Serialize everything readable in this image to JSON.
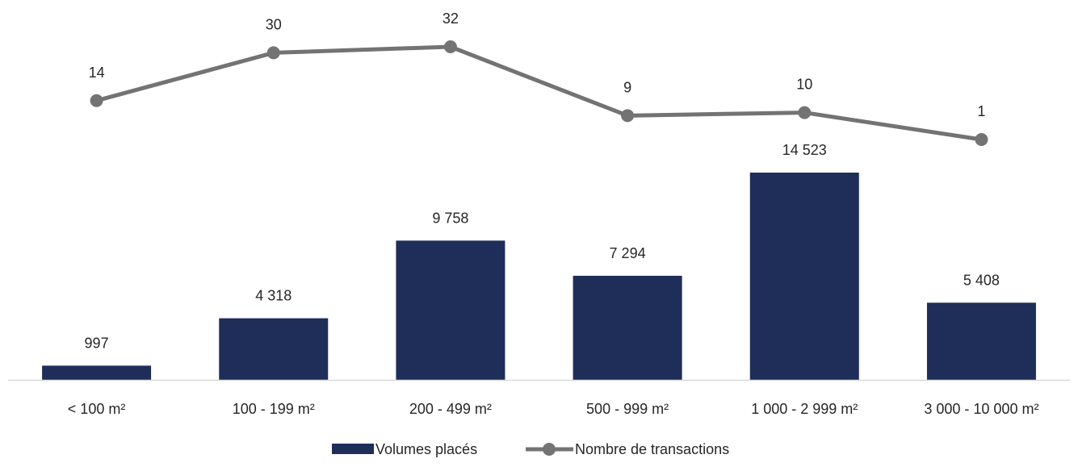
{
  "chart_data": {
    "type": "bar",
    "categories": [
      "< 100 m²",
      "100 - 199 m²",
      "200 - 499 m²",
      "500 - 999 m²",
      "1 000 - 2 999 m²",
      "3 000 - 10 000 m²"
    ],
    "series": [
      {
        "name": "Volumes placés",
        "type": "bar",
        "values": [
          997,
          4318,
          9758,
          7294,
          14523,
          5408
        ],
        "labels": [
          "997",
          "4 318",
          "9 758",
          "7 294",
          "14 523",
          "5 408"
        ],
        "color": "#1f2d59"
      },
      {
        "name": "Nombre de transactions",
        "type": "line",
        "values": [
          14,
          30,
          32,
          9,
          10,
          1
        ],
        "labels": [
          "14",
          "30",
          "32",
          "9",
          "10",
          "1"
        ],
        "color": "#737373"
      }
    ],
    "bar_axis_range": [
      0,
      14523
    ],
    "line_axis_range": [
      1,
      32
    ],
    "grid": false,
    "legend_position": "bottom"
  }
}
